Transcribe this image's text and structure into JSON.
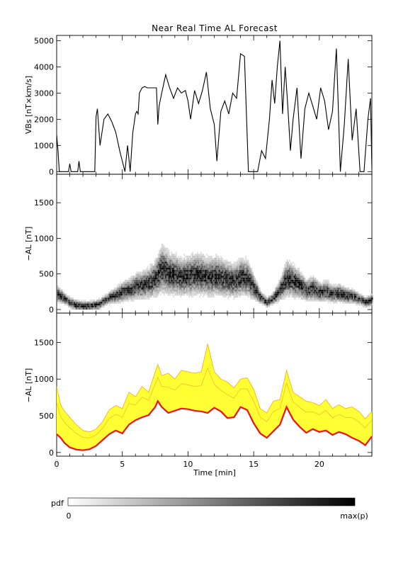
{
  "chart_data": [
    {
      "type": "line",
      "panel": "vbs",
      "title": "Near Real Time AL Forecast",
      "ylabel": "VBs [nT×km/s]",
      "xlim": [
        0,
        24
      ],
      "ylim": [
        -100,
        5200
      ],
      "yticks": [
        "0",
        "1000",
        "2000",
        "3000",
        "4000",
        "5000"
      ],
      "series": [
        {
          "x": [
            0,
            0.1,
            0.2,
            0.4,
            0.9,
            1.0,
            1.1,
            1.6,
            1.7,
            1.8,
            2.9,
            3.0,
            3.1,
            3.3,
            3.6,
            3.9,
            4.2,
            4.5,
            4.8,
            5.2,
            5.4,
            5.6,
            5.8,
            6.0,
            6.1,
            6.2,
            6.3,
            6.5,
            6.7,
            6.9,
            7.1,
            7.2,
            7.4,
            7.6,
            7.7,
            7.8,
            8.0,
            8.3,
            8.6,
            8.9,
            9.2,
            9.5,
            9.8,
            10.0,
            10.2,
            10.5,
            10.8,
            11.1,
            11.4,
            11.7,
            12.0,
            12.2,
            12.5,
            12.8,
            13.1,
            13.4,
            13.7,
            14.0,
            14.3,
            14.6,
            15.0,
            15.3,
            15.6,
            15.9,
            16.2,
            16.4,
            16.6,
            16.8,
            17.0,
            17.2,
            17.4,
            17.6,
            17.8,
            18.0,
            18.3,
            18.6,
            18.9,
            19.2,
            19.5,
            19.8,
            20.1,
            20.4,
            20.7,
            21.0,
            21.3,
            21.6,
            21.9,
            22.2,
            22.5,
            22.8,
            23.1,
            23.4,
            23.7,
            23.9,
            24.0
          ],
          "y": [
            1400,
            800,
            0,
            0,
            0,
            300,
            0,
            0,
            400,
            0,
            0,
            2100,
            2400,
            1000,
            2000,
            2200,
            1900,
            1500,
            800,
            0,
            1000,
            0,
            1500,
            2200,
            2300,
            2200,
            3000,
            3200,
            3250,
            3200,
            3200,
            3200,
            3200,
            3200,
            1800,
            2500,
            3000,
            3700,
            3200,
            2800,
            3200,
            3000,
            3100,
            2700,
            2000,
            3100,
            2600,
            3100,
            3800,
            2400,
            1800,
            400,
            2300,
            2700,
            2200,
            3000,
            2800,
            4500,
            4400,
            0,
            0,
            0,
            800,
            500,
            2000,
            3500,
            2600,
            4000,
            5000,
            2200,
            4000,
            2500,
            800,
            2000,
            3200,
            500,
            2400,
            3000,
            2500,
            2000,
            3200,
            2700,
            1600,
            2300,
            4700,
            0,
            1800,
            4300,
            1200,
            2400,
            0,
            0,
            2000,
            2800,
            100
          ]
        }
      ]
    },
    {
      "type": "heatmap",
      "panel": "al-pdf",
      "ylabel": "−AL [nT]",
      "xlim": [
        0,
        24
      ],
      "ylim": [
        -50,
        1900
      ],
      "yticks": [
        "0",
        "500",
        "1000",
        "1500"
      ],
      "ridge": {
        "x": [
          0,
          0.5,
          1,
          1.5,
          2,
          2.5,
          3,
          3.5,
          4,
          4.5,
          5,
          5.5,
          6,
          6.5,
          7,
          7.5,
          8,
          8.5,
          9,
          9.5,
          10,
          10.5,
          11,
          11.5,
          12,
          12.5,
          13,
          13.5,
          14,
          14.5,
          15,
          15.5,
          16,
          16.5,
          17,
          17.5,
          18,
          18.5,
          19,
          19.5,
          20,
          20.5,
          21,
          21.5,
          22,
          22.5,
          23,
          23.5,
          24
        ],
        "y": [
          200,
          150,
          80,
          40,
          25,
          30,
          40,
          90,
          150,
          180,
          230,
          260,
          300,
          320,
          350,
          420,
          550,
          480,
          460,
          430,
          450,
          470,
          460,
          430,
          450,
          430,
          400,
          380,
          430,
          420,
          290,
          150,
          80,
          150,
          260,
          420,
          380,
          320,
          250,
          280,
          220,
          240,
          200,
          210,
          180,
          170,
          130,
          90,
          120
        ]
      },
      "colorbar": {
        "label": "pdf",
        "min_label": "0",
        "max_label": "max(p)"
      }
    },
    {
      "type": "area",
      "panel": "al-forecast",
      "ylabel": "−AL [nT]",
      "xlabel": "Time [min]",
      "xlim": [
        0,
        24
      ],
      "ylim": [
        -50,
        1900
      ],
      "yticks": [
        "0",
        "500",
        "1000",
        "1500"
      ],
      "xticks": [
        "0",
        "5",
        "10",
        "15",
        "20"
      ],
      "colors": {
        "band": "#ffff33",
        "envelope": "#f5a623",
        "median": "#ee1111"
      },
      "series": [
        {
          "name": "median",
          "x": [
            0,
            0.3,
            0.6,
            1,
            1.5,
            2,
            2.5,
            3,
            3.5,
            4,
            4.5,
            5,
            5.5,
            6,
            6.5,
            7,
            7.5,
            7.7,
            8,
            8.5,
            9,
            9.5,
            10,
            10.5,
            11,
            11.5,
            12,
            12.5,
            13,
            13.5,
            14,
            14.5,
            15,
            15.5,
            16,
            16.5,
            17,
            17.5,
            18,
            18.5,
            19,
            19.5,
            20,
            20.5,
            21,
            21.5,
            22,
            22.5,
            23,
            23.5,
            24
          ],
          "y": [
            250,
            200,
            130,
            70,
            40,
            30,
            45,
            90,
            170,
            250,
            300,
            260,
            380,
            440,
            480,
            510,
            620,
            700,
            620,
            540,
            570,
            600,
            590,
            570,
            560,
            540,
            610,
            560,
            470,
            480,
            620,
            580,
            400,
            260,
            200,
            290,
            380,
            620,
            450,
            350,
            270,
            320,
            280,
            300,
            240,
            280,
            250,
            200,
            160,
            100,
            220
          ]
        },
        {
          "name": "upper",
          "x": [
            0,
            0.3,
            0.6,
            1,
            1.5,
            2,
            2.5,
            3,
            3.5,
            4,
            4.5,
            5,
            5.5,
            6,
            6.5,
            7,
            7.5,
            7.7,
            8,
            8.5,
            9,
            9.5,
            10,
            10.5,
            11,
            11.5,
            12,
            12.5,
            13,
            13.5,
            14,
            14.5,
            15,
            15.5,
            16,
            16.5,
            17,
            17.5,
            18,
            18.5,
            19,
            19.5,
            20,
            20.5,
            21,
            21.5,
            22,
            22.5,
            23,
            23.5,
            24
          ],
          "y": [
            900,
            650,
            560,
            480,
            380,
            300,
            280,
            320,
            420,
            580,
            640,
            600,
            820,
            760,
            900,
            820,
            1100,
            1200,
            1050,
            1080,
            1000,
            1120,
            1100,
            1080,
            1100,
            1480,
            1100,
            1000,
            960,
            880,
            1000,
            1020,
            860,
            600,
            540,
            700,
            720,
            1120,
            820,
            760,
            700,
            680,
            640,
            720,
            600,
            650,
            600,
            620,
            560,
            460,
            560
          ]
        }
      ]
    }
  ]
}
